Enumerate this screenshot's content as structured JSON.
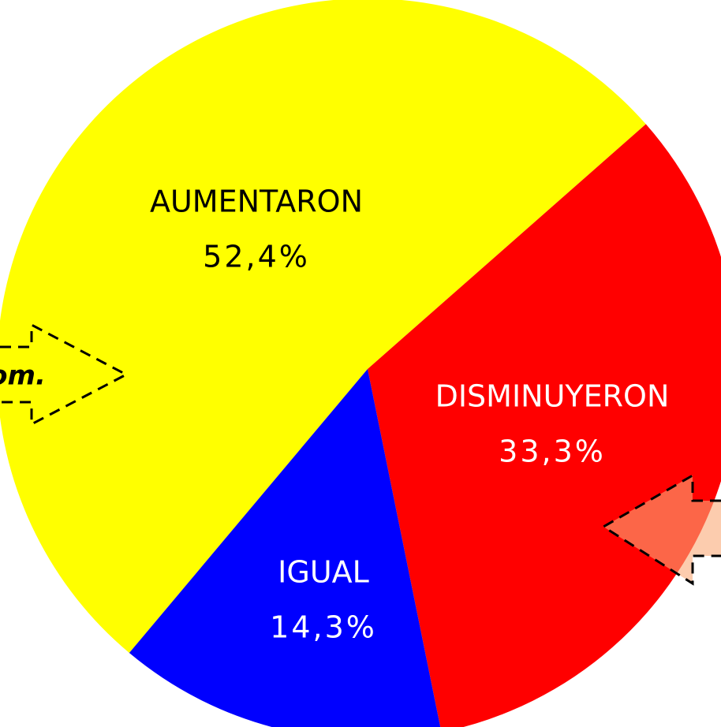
{
  "chart_data": {
    "type": "pie",
    "categories": [
      "AUMENTARON",
      "DISMINUYERON",
      "IGUAL"
    ],
    "values": [
      52.4,
      33.3,
      14.3
    ],
    "value_labels": [
      "52,4%",
      "33,3%",
      "14,3%"
    ],
    "colors": [
      "#ffff00",
      "#ff0000",
      "#0000ff"
    ],
    "label_colors": [
      "#000000",
      "#ffffff",
      "#ffffff"
    ],
    "annotations": [
      "om."
    ]
  }
}
